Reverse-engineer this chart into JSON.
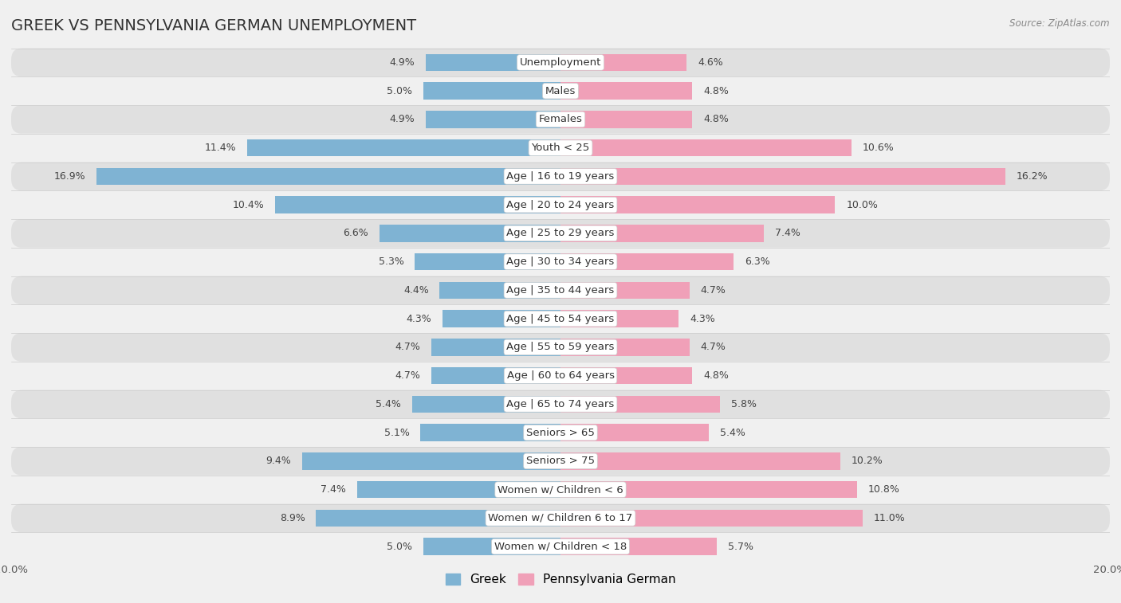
{
  "title": "GREEK VS PENNSYLVANIA GERMAN UNEMPLOYMENT",
  "source": "Source: ZipAtlas.com",
  "categories": [
    "Unemployment",
    "Males",
    "Females",
    "Youth < 25",
    "Age | 16 to 19 years",
    "Age | 20 to 24 years",
    "Age | 25 to 29 years",
    "Age | 30 to 34 years",
    "Age | 35 to 44 years",
    "Age | 45 to 54 years",
    "Age | 55 to 59 years",
    "Age | 60 to 64 years",
    "Age | 65 to 74 years",
    "Seniors > 65",
    "Seniors > 75",
    "Women w/ Children < 6",
    "Women w/ Children 6 to 17",
    "Women w/ Children < 18"
  ],
  "greek_values": [
    4.9,
    5.0,
    4.9,
    11.4,
    16.9,
    10.4,
    6.6,
    5.3,
    4.4,
    4.3,
    4.7,
    4.7,
    5.4,
    5.1,
    9.4,
    7.4,
    8.9,
    5.0
  ],
  "pa_german_values": [
    4.6,
    4.8,
    4.8,
    10.6,
    16.2,
    10.0,
    7.4,
    6.3,
    4.7,
    4.3,
    4.7,
    4.8,
    5.8,
    5.4,
    10.2,
    10.8,
    11.0,
    5.7
  ],
  "greek_color": "#7fb3d3",
  "pa_german_color": "#f0a0b8",
  "row_bg_light": "#f0f0f0",
  "row_bg_dark": "#e0e0e0",
  "fig_bg": "#f0f0f0",
  "axis_max": 20.0,
  "bar_height": 0.6,
  "title_fontsize": 14,
  "label_fontsize": 9.5,
  "value_fontsize": 9,
  "tick_fontsize": 9.5,
  "legend_fontsize": 11
}
